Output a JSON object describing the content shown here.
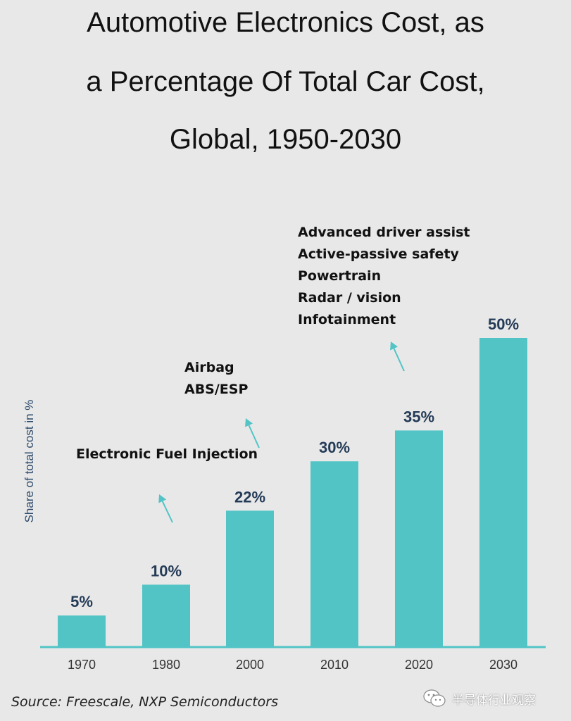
{
  "chart_data": {
    "type": "bar",
    "title": "Automotive Electronics Cost, as a Percentage Of Total Car Cost, Global, 1950-2030",
    "title_lines": [
      "Automotive Electronics Cost, as",
      "a Percentage Of Total Car Cost,",
      "Global, 1950-2030"
    ],
    "categories": [
      "1970",
      "1980",
      "2000",
      "2010",
      "2020",
      "2030"
    ],
    "values": [
      5,
      10,
      22,
      30,
      35,
      50
    ],
    "data_labels": [
      "5%",
      "10%",
      "22%",
      "30%",
      "35%",
      "50%"
    ],
    "xlabel": "",
    "ylabel": "Share of total cost in %",
    "ylim": [
      0,
      50
    ],
    "bar_color": "#52c4c6",
    "arrow_color": "#52c4c6",
    "annotations": [
      {
        "near_category": "1980",
        "lines": [
          "Electronic Fuel Injection"
        ]
      },
      {
        "near_category": "2000",
        "lines": [
          "Airbag",
          "ABS/ESP"
        ]
      },
      {
        "near_category": "2020",
        "lines": [
          "Advanced driver assist",
          "Active-passive safety",
          "Powertrain",
          "Radar / vision",
          "Infotainment"
        ]
      }
    ],
    "source": "Source: Freescale, NXP Semiconductors"
  },
  "watermark": {
    "icon": "wechat-icon",
    "text": "半导体行业观察"
  }
}
